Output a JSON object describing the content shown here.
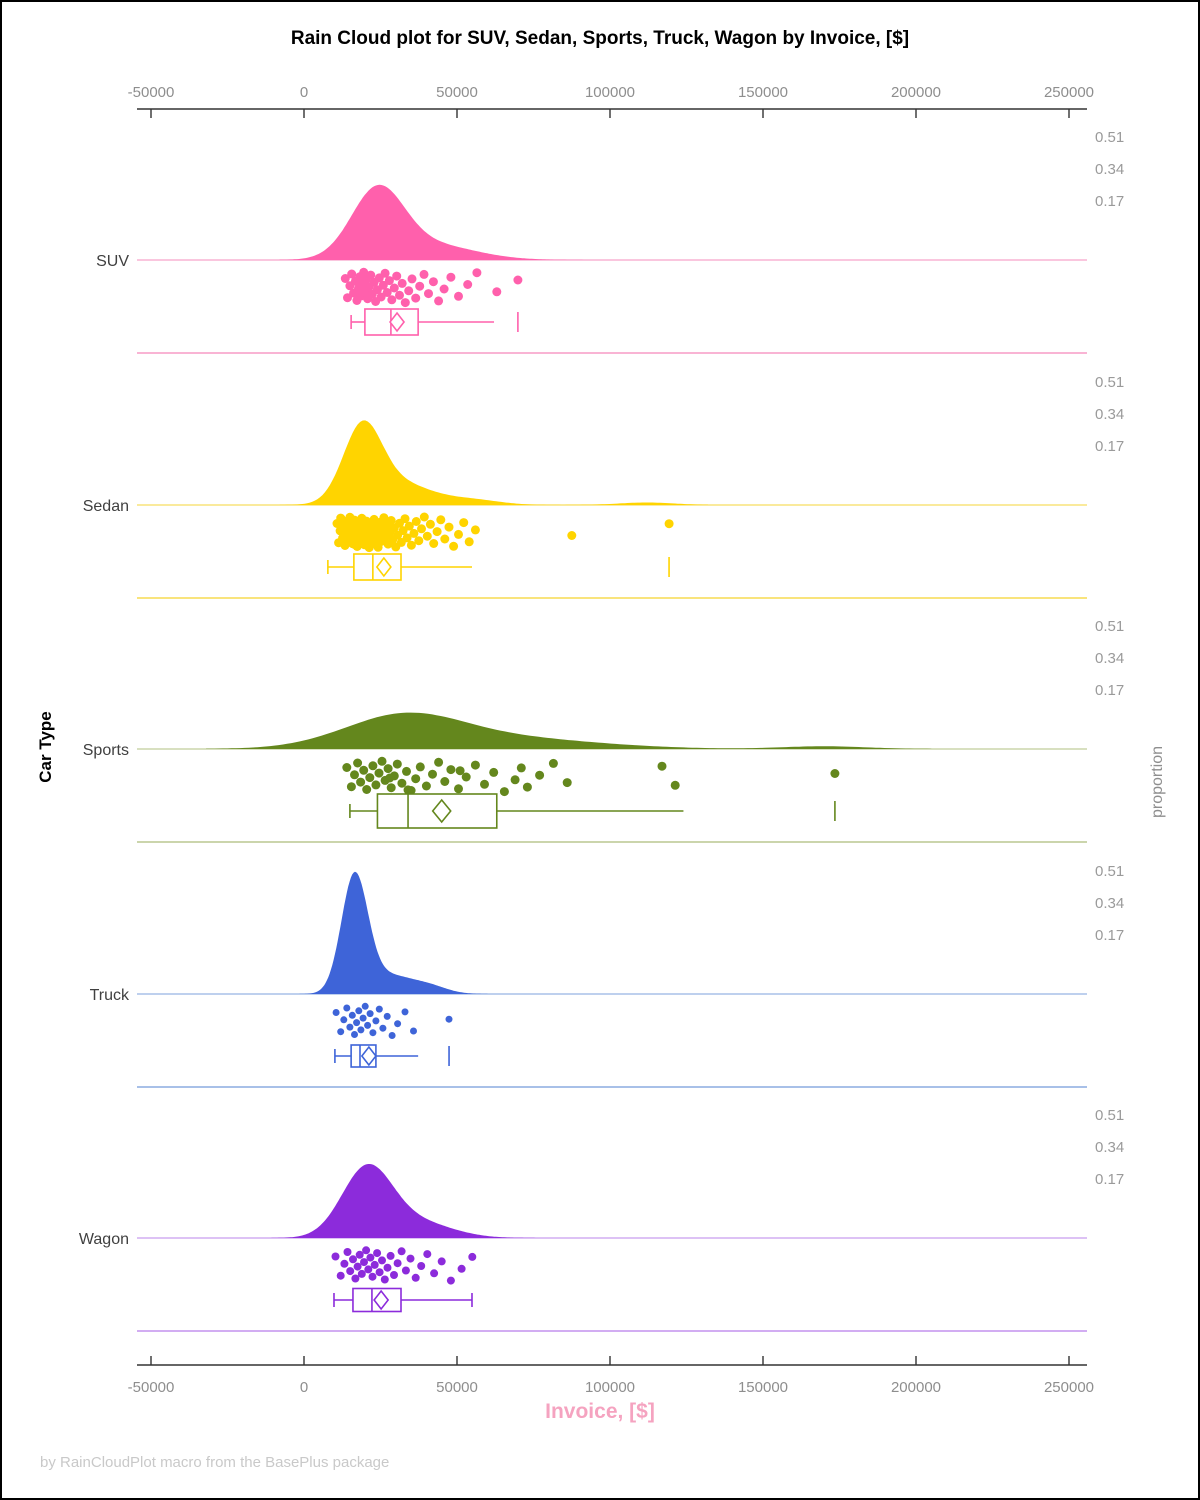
{
  "figure": {
    "title": "Rain Cloud plot for SUV, Sedan, Sports, Truck, Wagon by Invoice, [$]",
    "x_axis_label": "Invoice, [$]",
    "y_axis_label": "Car Type",
    "right_axis_label": "proportion",
    "footer": "by RainCloudPlot macro from the BasePlus package"
  },
  "chart_data": {
    "type": "raincloud (half-violin density + jittered strip points + box plot per category)",
    "title": "Rain Cloud plot for SUV, Sedan, Sports, Truck, Wagon by Invoice, [$]",
    "xlabel": "Invoice, [$]",
    "ylabel": "Car Type",
    "right_axis_label": "proportion",
    "x_axis": {
      "ticks": [
        -50000,
        0,
        50000,
        100000,
        150000,
        200000,
        250000
      ],
      "range": [
        -55000,
        258000
      ]
    },
    "proportion_ticks": [
      0.51,
      0.34,
      0.17
    ],
    "groups": [
      {
        "name": "SUV",
        "color": "#FF60AC",
        "light_color": "#F9B4D4",
        "density": {
          "range": [
            -8000,
            95000
          ],
          "components": [
            [
              24000,
              8500,
              0.7
            ],
            [
              40000,
              15000,
              0.3
            ]
          ],
          "peak_proportion": 0.32
        },
        "box": {
          "whisker_low": 15400,
          "q1": 19900,
          "median": 28400,
          "mean": 30400,
          "q3": 37300,
          "whisker_high": 62100,
          "extreme": 69900
        },
        "points": [
          13500,
          14200,
          15000,
          15600,
          16200,
          16800,
          17300,
          17800,
          18200,
          18700,
          19100,
          19500,
          19900,
          20300,
          20800,
          21300,
          21800,
          22300,
          22900,
          23400,
          24000,
          24600,
          25200,
          25900,
          26500,
          27200,
          27900,
          28700,
          29500,
          30300,
          31200,
          32100,
          33100,
          34200,
          35300,
          36500,
          37800,
          39200,
          40700,
          42300,
          44000,
          45800,
          48000,
          50500,
          53500,
          56500,
          63000,
          69900
        ]
      },
      {
        "name": "Sedan",
        "color": "#FFD400",
        "light_color": "#F9E47C",
        "density": {
          "range": [
            -8000,
            132000
          ],
          "components": [
            [
              19000,
              6200,
              0.58
            ],
            [
              30000,
              11000,
              0.33
            ],
            [
              55000,
              9000,
              0.06
            ],
            [
              112000,
              9000,
              0.03
            ]
          ],
          "peak_proportion": 0.36
        },
        "box": {
          "whisker_low": 7800,
          "q1": 16300,
          "median": 22500,
          "mean": 26100,
          "q3": 31700,
          "whisker_high": 54900,
          "extreme": 119300
        },
        "points": [
          10800,
          11300,
          11800,
          12200,
          12600,
          13000,
          13400,
          13800,
          14100,
          14400,
          14700,
          15000,
          15300,
          15600,
          15900,
          16200,
          16500,
          16800,
          17100,
          17400,
          17700,
          18000,
          18300,
          18600,
          18900,
          19200,
          19500,
          19800,
          20100,
          20400,
          20700,
          21000,
          21300,
          21600,
          21900,
          22200,
          22500,
          22900,
          23300,
          23700,
          24100,
          24500,
          24900,
          25300,
          25700,
          26100,
          26500,
          27000,
          27500,
          28000,
          28500,
          29000,
          29500,
          30000,
          30600,
          31200,
          31800,
          32400,
          33000,
          33700,
          34400,
          35100,
          35900,
          36700,
          37500,
          38400,
          39300,
          40300,
          41300,
          42400,
          43500,
          44700,
          46000,
          47400,
          48900,
          50500,
          52200,
          54000,
          56000,
          12000,
          13600,
          15100,
          16600,
          18100,
          19600,
          21100,
          22600,
          24200,
          87500,
          119300
        ]
      },
      {
        "name": "Sports",
        "color": "#64871D",
        "light_color": "#CBD5AC",
        "density": {
          "range": [
            -32000,
            205000
          ],
          "components": [
            [
              32000,
              19000,
              0.58
            ],
            [
              62000,
              31000,
              0.38
            ],
            [
              170000,
              14000,
              0.04
            ]
          ],
          "peak_proportion": 0.155
        },
        "box": {
          "whisker_low": 15000,
          "q1": 24000,
          "median": 34000,
          "mean": 45000,
          "q3": 63000,
          "whisker_high": 124000,
          "extreme": 173500
        },
        "points": [
          14000,
          15500,
          16500,
          17500,
          18500,
          19500,
          20500,
          21500,
          22500,
          23500,
          24500,
          25500,
          26500,
          27500,
          28500,
          29500,
          30500,
          32000,
          33500,
          35000,
          36500,
          38000,
          40000,
          42000,
          44000,
          46000,
          48000,
          50500,
          53000,
          56000,
          59000,
          62000,
          65500,
          69000,
          71000,
          73000,
          77000,
          81500,
          86000,
          51000,
          34000,
          28000,
          117000,
          121300,
          173500
        ]
      },
      {
        "name": "Truck",
        "color": "#3E64D8",
        "light_color": "#A8C0E8",
        "density": {
          "range": [
            -6000,
            68000
          ],
          "components": [
            [
              16500,
              4300,
              0.72
            ],
            [
              27000,
              8000,
              0.22
            ],
            [
              41000,
              6000,
              0.06
            ]
          ],
          "peak_proportion": 0.52
        },
        "box": {
          "whisker_low": 10100,
          "q1": 15400,
          "median": 18300,
          "mean": 21200,
          "q3": 23500,
          "whisker_high": 37300,
          "extreme": 47400
        },
        "points": [
          10500,
          12000,
          13000,
          14000,
          15000,
          15800,
          16500,
          17200,
          17900,
          18600,
          19300,
          20000,
          20800,
          21600,
          22500,
          23500,
          24600,
          25800,
          27200,
          28800,
          30600,
          33000,
          35800,
          47400
        ]
      },
      {
        "name": "Wagon",
        "color": "#8C2BDB",
        "light_color": "#D2ADF2",
        "density": {
          "range": [
            -12000,
            80000
          ],
          "components": [
            [
              20500,
              8200,
              0.75
            ],
            [
              36500,
              11500,
              0.25
            ]
          ],
          "peak_proportion": 0.315
        },
        "box": {
          "whisker_low": 9800,
          "q1": 16000,
          "median": 22200,
          "mean": 25200,
          "q3": 31700,
          "whisker_high": 54900,
          "extreme": null
        },
        "points": [
          10300,
          12000,
          13200,
          14200,
          15100,
          16000,
          16800,
          17500,
          18200,
          18900,
          19600,
          20300,
          21000,
          21700,
          22400,
          23100,
          23900,
          24700,
          25500,
          26400,
          27300,
          28300,
          29400,
          30600,
          31900,
          33300,
          34800,
          36500,
          38300,
          40300,
          42500,
          45000,
          48000,
          51500,
          55000
        ]
      }
    ]
  },
  "style_colors": {
    "axis_line": "#333333",
    "axis_tick_label": "#8E8E8E",
    "category_label": "#404040",
    "proportion_label": "#9A9A9A",
    "xlabel_pink": "#F5A3C0",
    "footer_gray": "#C9C9C9"
  }
}
